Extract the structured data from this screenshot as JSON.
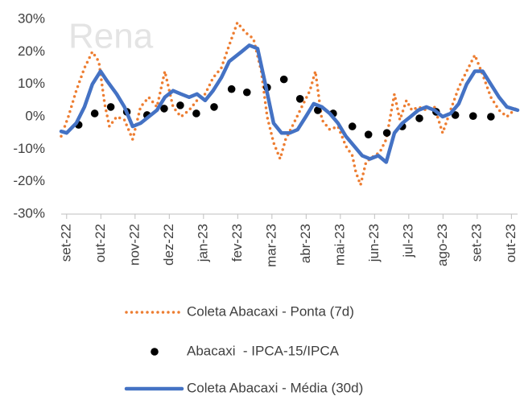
{
  "chart_data": {
    "type": "line",
    "watermark": "Rena",
    "xlim": [
      -0.16,
      13.18
    ],
    "xticks": [
      {
        "value": 0,
        "label": "set-22"
      },
      {
        "value": 1,
        "label": "out-22"
      },
      {
        "value": 2,
        "label": "nov-22"
      },
      {
        "value": 3,
        "label": "dez-22"
      },
      {
        "value": 4,
        "label": "jan-23"
      },
      {
        "value": 5,
        "label": "fev-23"
      },
      {
        "value": 6,
        "label": "mar-23"
      },
      {
        "value": 7,
        "label": "abr-23"
      },
      {
        "value": 8,
        "label": "mai-23"
      },
      {
        "value": 9,
        "label": "jun-23"
      },
      {
        "value": 10,
        "label": "jul-23"
      },
      {
        "value": 11,
        "label": "ago-23"
      },
      {
        "value": 12,
        "label": "set-23"
      },
      {
        "value": 13,
        "label": "out-23"
      }
    ],
    "ylim": [
      -30,
      30
    ],
    "yticks": [
      {
        "value": 30,
        "label": "30%"
      },
      {
        "value": 20,
        "label": "20%"
      },
      {
        "value": 10,
        "label": "10%"
      },
      {
        "value": 0,
        "label": "0%"
      },
      {
        "value": -10,
        "label": "-10%"
      },
      {
        "value": -20,
        "label": "-20%"
      },
      {
        "value": -30,
        "label": "-30%"
      }
    ],
    "grid": false,
    "legend": "bottom",
    "series": [
      {
        "name": "Coleta Abacaxi - Ponta (7d)",
        "type": "line",
        "dash": "dotted",
        "color": "#ed7d31",
        "x": [
          -0.16,
          0.05,
          0.28,
          0.52,
          0.75,
          0.94,
          1.11,
          1.25,
          1.46,
          1.69,
          1.93,
          2.16,
          2.4,
          2.64,
          2.87,
          3.11,
          3.34,
          3.58,
          3.81,
          4.05,
          4.28,
          4.52,
          4.75,
          4.99,
          5.22,
          5.46,
          5.69,
          5.86,
          6.05,
          6.24,
          6.4,
          6.64,
          6.87,
          7.11,
          7.27,
          7.46,
          7.69,
          7.93,
          8.16,
          8.35,
          8.45,
          8.59,
          8.75,
          8.99,
          9.15,
          9.34,
          9.58,
          9.74,
          9.93,
          10.09,
          10.28,
          10.52,
          10.75,
          10.99,
          11.22,
          11.46,
          11.69,
          11.93,
          12.16,
          12.4,
          12.64,
          12.87,
          13.18
        ],
        "values": [
          -6,
          0,
          8,
          15,
          20,
          17,
          4,
          -3,
          0,
          -1,
          -7,
          3,
          6,
          3,
          14,
          3,
          0,
          2,
          5,
          7,
          12,
          15,
          22,
          29,
          26,
          24,
          14,
          0,
          -8,
          -13,
          -7,
          -2,
          3,
          8,
          14,
          -1,
          -4,
          -3,
          -9,
          -12,
          -17,
          -21,
          -14,
          -12,
          -11,
          -7,
          7,
          -1,
          5,
          2,
          3,
          2,
          3,
          -5,
          2,
          9,
          14,
          19,
          13,
          6,
          2,
          0,
          3
        ]
      },
      {
        "name": "Abacaxi  - IPCA-15/IPCA",
        "type": "scatter",
        "color": "#000000",
        "x": [
          0.35,
          0.82,
          1.29,
          1.76,
          2.35,
          2.85,
          3.32,
          3.79,
          4.31,
          4.82,
          5.27,
          5.86,
          6.35,
          6.82,
          7.34,
          7.79,
          8.35,
          8.82,
          9.36,
          9.81,
          10.31,
          10.8,
          11.36,
          11.88,
          12.4
        ],
        "values": [
          -2.5,
          1,
          3,
          1.5,
          0.5,
          2.5,
          3.5,
          1,
          3,
          8.5,
          7.5,
          9,
          11.5,
          5.5,
          2,
          1,
          -3,
          -5.5,
          -5,
          -3,
          -0.5,
          1.5,
          0.5,
          0.2,
          0
        ]
      },
      {
        "name": "Coleta Abacaxi - Média (30d)",
        "type": "line",
        "dash": "solid",
        "color": "#4472c4",
        "x": [
          -0.16,
          0,
          0.28,
          0.52,
          0.75,
          0.99,
          1.18,
          1.46,
          1.69,
          1.93,
          2.16,
          2.4,
          2.64,
          2.87,
          3.11,
          3.34,
          3.58,
          3.81,
          4.05,
          4.28,
          4.52,
          4.75,
          5.11,
          5.34,
          5.58,
          5.81,
          6.05,
          6.28,
          6.52,
          6.75,
          6.99,
          7.22,
          7.46,
          7.69,
          7.93,
          8.16,
          8.4,
          8.64,
          8.87,
          9.11,
          9.34,
          9.58,
          9.81,
          10.05,
          10.28,
          10.52,
          10.75,
          10.99,
          11.22,
          11.46,
          11.69,
          11.93,
          12.16,
          12.4,
          12.64,
          12.87,
          13.18
        ],
        "values": [
          -4.5,
          -5,
          -2,
          3,
          10,
          14,
          11,
          7,
          3,
          -3,
          -2,
          0,
          2,
          6,
          8,
          7,
          6,
          7,
          5,
          8,
          12,
          17,
          20,
          22,
          21,
          10,
          -2,
          -5,
          -5,
          -4,
          0,
          4,
          3,
          1,
          -2,
          -6,
          -9,
          -12,
          -13,
          -12,
          -14,
          -5,
          -2,
          0,
          2,
          3,
          2,
          0,
          1,
          4,
          10,
          14,
          14,
          10,
          6,
          3,
          2
        ]
      }
    ]
  }
}
